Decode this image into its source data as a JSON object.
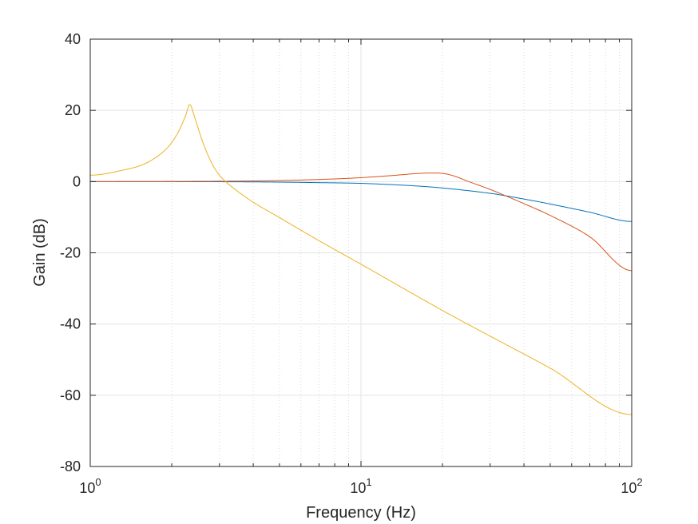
{
  "chart_data": {
    "type": "line",
    "xscale": "log",
    "xlim": [
      1,
      100
    ],
    "ylim": [
      -80,
      40
    ],
    "grid": true,
    "xlabel": "Frequency (Hz)",
    "ylabel": "Gain (dB)",
    "x_ticks": [
      {
        "value": 1,
        "base": "10",
        "exp": "0"
      },
      {
        "value": 10,
        "base": "10",
        "exp": "1"
      },
      {
        "value": 100,
        "base": "10",
        "exp": "2"
      }
    ],
    "y_ticks": [
      {
        "value": 40,
        "label": "40"
      },
      {
        "value": 20,
        "label": "20"
      },
      {
        "value": 0,
        "label": "0"
      },
      {
        "value": -20,
        "label": "-20"
      },
      {
        "value": -40,
        "label": "-40"
      },
      {
        "value": -60,
        "label": "-60"
      },
      {
        "value": -80,
        "label": "-80"
      }
    ],
    "series": [
      {
        "color": "#0072bd",
        "x": [
          1,
          3,
          5,
          7,
          10,
          15,
          20,
          30,
          40,
          50,
          70,
          100
        ],
        "y": [
          0,
          -0.05,
          -0.15,
          -0.3,
          -0.5,
          -1.1,
          -1.8,
          -3.3,
          -4.9,
          -6.3,
          -8.6,
          -11.2
        ]
      },
      {
        "color": "#d95319",
        "x": [
          1,
          3,
          5,
          8,
          10,
          13,
          16,
          18,
          20,
          22,
          25,
          30,
          35,
          40,
          50,
          70,
          100
        ],
        "y": [
          0,
          0.1,
          0.3,
          0.75,
          1.1,
          1.7,
          2.25,
          2.4,
          2.3,
          1.6,
          0,
          -2.2,
          -4.3,
          -6.2,
          -9.5,
          -15.5,
          -25
        ]
      },
      {
        "color": "#edb120",
        "x": [
          1,
          1.3,
          1.6,
          1.9,
          2.1,
          2.25,
          2.33,
          2.42,
          2.6,
          2.8,
          3.0,
          3.3,
          4,
          5,
          7,
          10,
          20,
          30,
          50,
          100
        ],
        "y": [
          1.8,
          3.1,
          5.1,
          9.0,
          13.5,
          18.5,
          21.7,
          18.5,
          11.2,
          5.4,
          1.8,
          -1.2,
          -5.8,
          -10.1,
          -16.6,
          -23.2,
          -36.2,
          -43.4,
          -52.4,
          -65.4
        ]
      }
    ]
  }
}
